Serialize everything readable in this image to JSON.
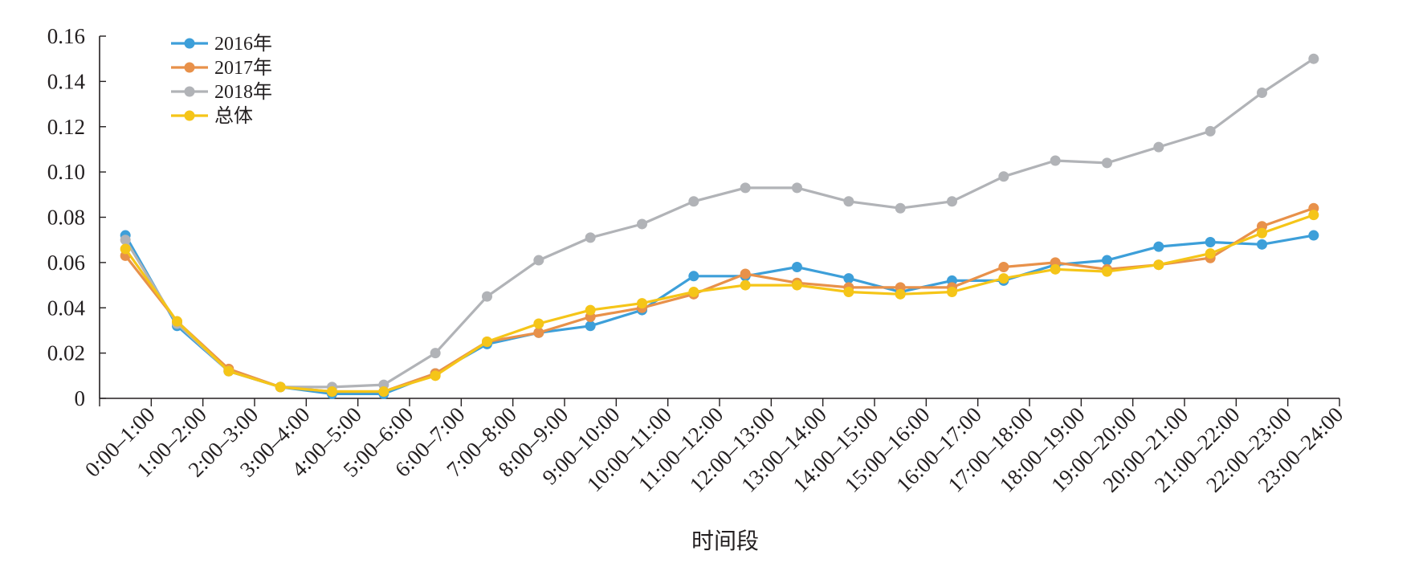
{
  "chart_data": {
    "type": "line",
    "title": "",
    "xlabel": "时间段",
    "ylabel": "",
    "ylim": [
      0,
      0.16
    ],
    "yticks": [
      "0",
      "0.02",
      "0.04",
      "0.06",
      "0.08",
      "0.10",
      "0.12",
      "0.14",
      "0.16"
    ],
    "grid": false,
    "legend_position": "top-left",
    "categories": [
      "0:00–1:00",
      "1:00–2:00",
      "2:00–3:00",
      "3:00–4:00",
      "4:00–5:00",
      "5:00–6:00",
      "6:00–7:00",
      "7:00–8:00",
      "8:00–9:00",
      "9:00–10:00",
      "10:00–11:00",
      "11:00–12:00",
      "12:00–13:00",
      "13:00–14:00",
      "14:00–15:00",
      "15:00–16:00",
      "16:00–17:00",
      "17:00–18:00",
      "18:00–19:00",
      "19:00–20:00",
      "20:00–21:00",
      "21:00–22:00",
      "22:00–23:00",
      "23:00–24:00"
    ],
    "series": [
      {
        "name": "2016年",
        "color": "#3d9fd9",
        "values": [
          0.072,
          0.032,
          0.012,
          0.005,
          0.002,
          0.002,
          0.011,
          0.024,
          0.029,
          0.032,
          0.039,
          0.054,
          0.054,
          0.058,
          0.053,
          0.047,
          0.052,
          0.052,
          0.059,
          0.061,
          0.067,
          0.069,
          0.068,
          0.072
        ]
      },
      {
        "name": "2017年",
        "color": "#e8914a",
        "values": [
          0.063,
          0.034,
          0.013,
          0.005,
          0.003,
          0.003,
          0.011,
          0.025,
          0.029,
          0.036,
          0.04,
          0.046,
          0.055,
          0.051,
          0.049,
          0.049,
          0.049,
          0.058,
          0.06,
          0.057,
          0.059,
          0.062,
          0.076,
          0.084
        ]
      },
      {
        "name": "2018年",
        "color": "#b1b3b7",
        "values": [
          0.07,
          0.033,
          0.012,
          0.005,
          0.005,
          0.006,
          0.02,
          0.045,
          0.061,
          0.071,
          0.077,
          0.087,
          0.093,
          0.093,
          0.087,
          0.084,
          0.087,
          0.098,
          0.105,
          0.104,
          0.111,
          0.118,
          0.135,
          0.15
        ]
      },
      {
        "name": "总体",
        "color": "#f5c518",
        "values": [
          0.066,
          0.034,
          0.012,
          0.005,
          0.003,
          0.003,
          0.01,
          0.025,
          0.033,
          0.039,
          0.042,
          0.047,
          0.05,
          0.05,
          0.047,
          0.046,
          0.047,
          0.053,
          0.057,
          0.056,
          0.059,
          0.064,
          0.073,
          0.081
        ]
      }
    ]
  }
}
